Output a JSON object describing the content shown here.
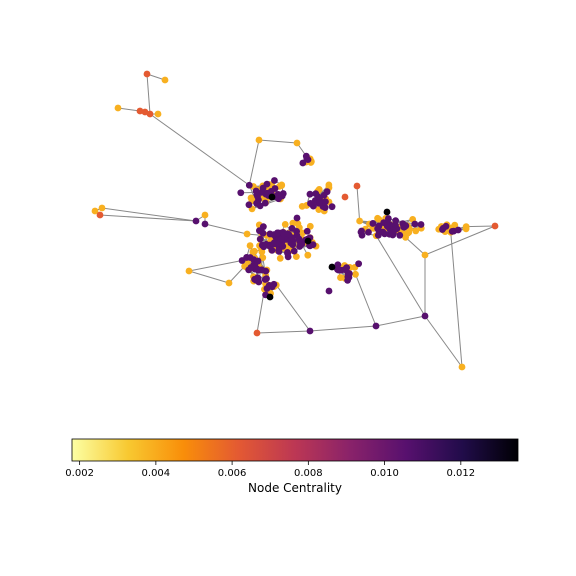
{
  "colorbar": {
    "label": "Node Centrality",
    "min": 0.0018,
    "max": 0.0135,
    "ticks": [
      "0.002",
      "0.004",
      "0.006",
      "0.008",
      "0.010",
      "0.012"
    ],
    "tick_values": [
      0.002,
      0.004,
      0.006,
      0.008,
      0.01,
      0.012
    ],
    "colormap": "inferno_r",
    "stops": [
      "#fcffa4",
      "#f8c931",
      "#f98e09",
      "#e35933",
      "#bc3754",
      "#89226a",
      "#57106e",
      "#210c4a",
      "#000004"
    ]
  },
  "network": {
    "edge_color": "#888888",
    "node_colors": {
      "low": "#f8b020",
      "mid": "#e45a31",
      "high": "#57106e",
      "top": "#000004"
    }
  }
}
